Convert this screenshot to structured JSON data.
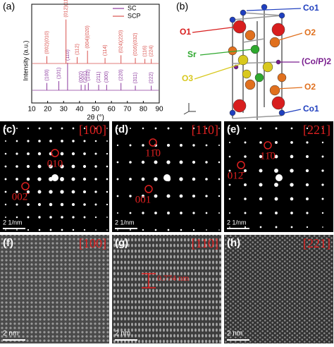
{
  "panel_a": {
    "label": "(a)",
    "xlabel": "2θ (°)",
    "ylabel": "Intensity (a.u.)",
    "xlim": [
      10,
      90
    ],
    "xticks": [
      10,
      20,
      30,
      40,
      50,
      60,
      70,
      80,
      90
    ],
    "series": [
      {
        "name": "SC",
        "color": "#8b3a9e",
        "peaks": [
          {
            "label": "(100)",
            "x": 19.5,
            "intensity": 8
          },
          {
            "label": "(101)",
            "x": 27,
            "intensity": 10
          },
          {
            "label": "(110)",
            "x": 32.5,
            "intensity": 30
          },
          {
            "label": "(002)",
            "x": 41,
            "intensity": 6
          },
          {
            "label": "(201)",
            "x": 43.5,
            "intensity": 6
          },
          {
            "label": "(102)",
            "x": 45.5,
            "intensity": 8
          },
          {
            "label": "(211)",
            "x": 52,
            "intensity": 6
          },
          {
            "label": "(300)",
            "x": 57,
            "intensity": 6
          },
          {
            "label": "(220)",
            "x": 66,
            "intensity": 8
          },
          {
            "label": "(311)",
            "x": 75,
            "intensity": 5
          },
          {
            "label": "(222)",
            "x": 85,
            "intensity": 5
          }
        ]
      },
      {
        "name": "SCP",
        "color": "#d9534f",
        "peaks": [
          {
            "label": "(002)(010)",
            "x": 19.5,
            "intensity": 8
          },
          {
            "label": "(012)(110)",
            "x": 31.5,
            "intensity": 48
          },
          {
            "label": "(112)",
            "x": 38.5,
            "intensity": 7
          },
          {
            "label": "(004)(020)",
            "x": 45,
            "intensity": 14
          },
          {
            "label": "(114)",
            "x": 56,
            "intensity": 6
          },
          {
            "label": "(024)(220)",
            "x": 66,
            "intensity": 9
          },
          {
            "label": "(016)(032)",
            "x": 75,
            "intensity": 6
          },
          {
            "label": "(116)",
            "x": 81,
            "intensity": 5
          },
          {
            "label": "(224)",
            "x": 85,
            "intensity": 5
          }
        ]
      }
    ]
  },
  "panel_b": {
    "label": "(b)",
    "atoms": [
      {
        "label": "Co1",
        "color": "#1f3fbf"
      },
      {
        "label": "O1",
        "color": "#d81e1e"
      },
      {
        "label": "O2",
        "color": "#e0701e"
      },
      {
        "label": "Sr",
        "color": "#2ea82e"
      },
      {
        "label": "(Co/P)2",
        "color": "#7a1f8f"
      },
      {
        "label": "O3",
        "color": "#d8c81e"
      },
      {
        "label": "O2",
        "color": "#e0701e"
      },
      {
        "label": "Co1",
        "color": "#1f3fbf"
      }
    ]
  },
  "diffraction": [
    {
      "label": "(c)",
      "zone_axis": "[100]",
      "spots": [
        "010",
        "002̄"
      ],
      "scale_bar": "2 1/nm"
    },
    {
      "label": "(d)",
      "zone_axis": "[110]",
      "spots": [
        "11̄0",
        "001"
      ],
      "scale_bar": "2 1/nm"
    },
    {
      "label": "(e)",
      "zone_axis": "[221]",
      "spots": [
        "11̄0",
        "012̄"
      ],
      "scale_bar": "2 1/nm"
    }
  ],
  "hrtem": [
    {
      "label": "(f)",
      "zone_axis": "[100]",
      "scale_bar": "2 nm"
    },
    {
      "label": "(g)",
      "zone_axis": "[110]",
      "scale_bar": "2 nm",
      "spacing": "0.774 nm"
    },
    {
      "label": "(h)",
      "zone_axis": "[221]",
      "scale_bar": "2 nm"
    }
  ]
}
